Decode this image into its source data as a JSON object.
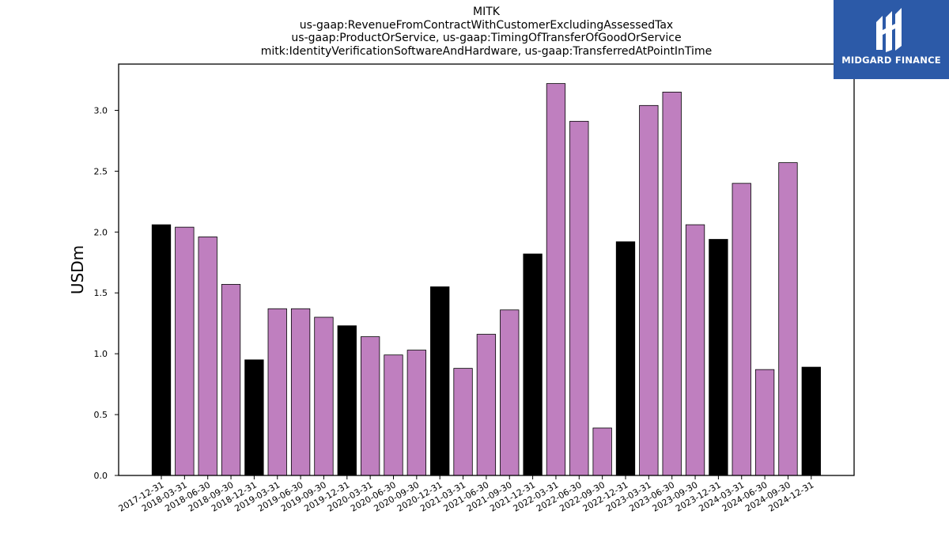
{
  "chart_data": {
    "type": "bar",
    "title_lines": [
      "MITK",
      "us-gaap:RevenueFromContractWithCustomerExcludingAssessedTax",
      "us-gaap:ProductOrService, us-gaap:TimingOfTransferOfGoodOrService",
      "mitk:IdentityVerificationSoftwareAndHardware, us-gaap:TransferredAtPointInTime"
    ],
    "ylabel": "USDm",
    "xlabel": "",
    "ylim": [
      0,
      3.38
    ],
    "yticks": [
      "0.0",
      "0.5",
      "1.0",
      "1.5",
      "2.0",
      "2.5",
      "3.0"
    ],
    "ytick_values": [
      0,
      0.5,
      1.0,
      1.5,
      2.0,
      2.5,
      3.0
    ],
    "categories": [
      "2017-12-31",
      "2018-03-31",
      "2018-06-30",
      "2018-09-30",
      "2018-12-31",
      "2019-03-31",
      "2019-06-30",
      "2019-09-30",
      "2019-12-31",
      "2020-03-31",
      "2020-06-30",
      "2020-09-30",
      "2020-12-31",
      "2021-03-31",
      "2021-06-30",
      "2021-09-30",
      "2021-12-31",
      "2022-03-31",
      "2022-06-30",
      "2022-09-30",
      "2022-12-31",
      "2023-03-31",
      "2023-06-30",
      "2023-09-30",
      "2023-12-31",
      "2024-03-31",
      "2024-06-30",
      "2024-09-30",
      "2024-12-31"
    ],
    "values": [
      2.06,
      2.04,
      1.96,
      1.57,
      0.95,
      1.37,
      1.37,
      1.3,
      1.23,
      1.14,
      0.99,
      1.03,
      1.55,
      0.88,
      1.16,
      1.36,
      1.82,
      3.22,
      2.91,
      0.39,
      1.92,
      3.04,
      3.15,
      2.06,
      1.94,
      2.4,
      0.87,
      2.57,
      0.89
    ],
    "colors": {
      "quarter_end_of_year": "#000000",
      "other_quarter": "#bf7fbf",
      "edge": "#000000"
    }
  },
  "logo": {
    "text": "MIDGARD FINANCE",
    "background": "#2c5aa8"
  }
}
